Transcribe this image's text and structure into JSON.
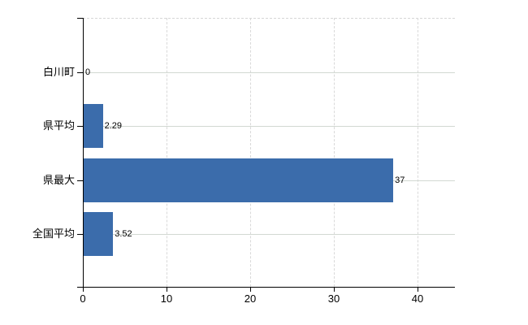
{
  "chart_data": {
    "type": "bar",
    "orientation": "horizontal",
    "title": "",
    "categories": [
      "白川町",
      "県平均",
      "県最大",
      "全国平均"
    ],
    "values": [
      0,
      2.29,
      37,
      3.52
    ],
    "value_labels": [
      "0",
      "2.29",
      "37",
      "3.52"
    ],
    "x_tick_labels": [
      "0",
      "10",
      "20",
      "30",
      "40"
    ],
    "x_tick_values": [
      0,
      10,
      20,
      30,
      40
    ],
    "xlim": [
      0,
      44.5
    ],
    "legend": "none",
    "grid": {
      "horizontal": "solid",
      "vertical": "dashed",
      "top_border": "dashed"
    },
    "colors": {
      "bar": "#3b6cab",
      "axis": "#000000",
      "hgrid": "#d2d8d2",
      "vgrid": "#d9d9d9",
      "text": "#000000",
      "background": "#ffffff"
    }
  }
}
